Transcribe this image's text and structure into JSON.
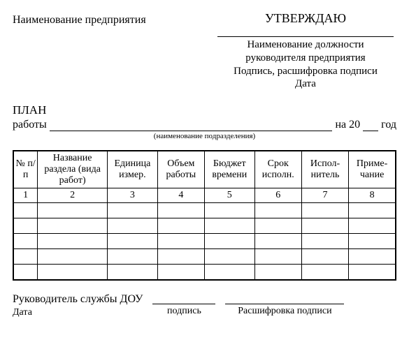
{
  "header": {
    "enterprise_label": "Наименование предприятия",
    "approve_title": "УТВЕРЖДАЮ",
    "approve_lines": {
      "l1": "Наименование должности",
      "l2": "руководителя предприятия",
      "l3": "Подпись, расшифровка подписи",
      "l4": "Дата"
    }
  },
  "plan": {
    "title": "ПЛАН",
    "work_prefix": "работы",
    "year_prefix": "на 20",
    "year_suffix": "год",
    "subdivision_caption": "(наименование подразделения)"
  },
  "table": {
    "columns": {
      "c1": "№ п/п",
      "c2": "Название раздела (вида работ)",
      "c3": "Единица измер.",
      "c4": "Объем работы",
      "c5": "Бюджет времени",
      "c6": "Срок исполн.",
      "c7": "Испол-нитель",
      "c8": "Приме-чание"
    },
    "numrow": {
      "n1": "1",
      "n2": "2",
      "n3": "3",
      "n4": "4",
      "n5": "5",
      "n6": "6",
      "n7": "7",
      "n8": "8"
    },
    "empty_rows": 5,
    "border_color": "#000000",
    "background_color": "#ffffff",
    "header_fontsize": 14
  },
  "footer": {
    "head_label": "Руководитель службы ДОУ",
    "date_label": "Дата",
    "sig_label": "подпись",
    "decode_label": "Расшифровка подписи"
  }
}
